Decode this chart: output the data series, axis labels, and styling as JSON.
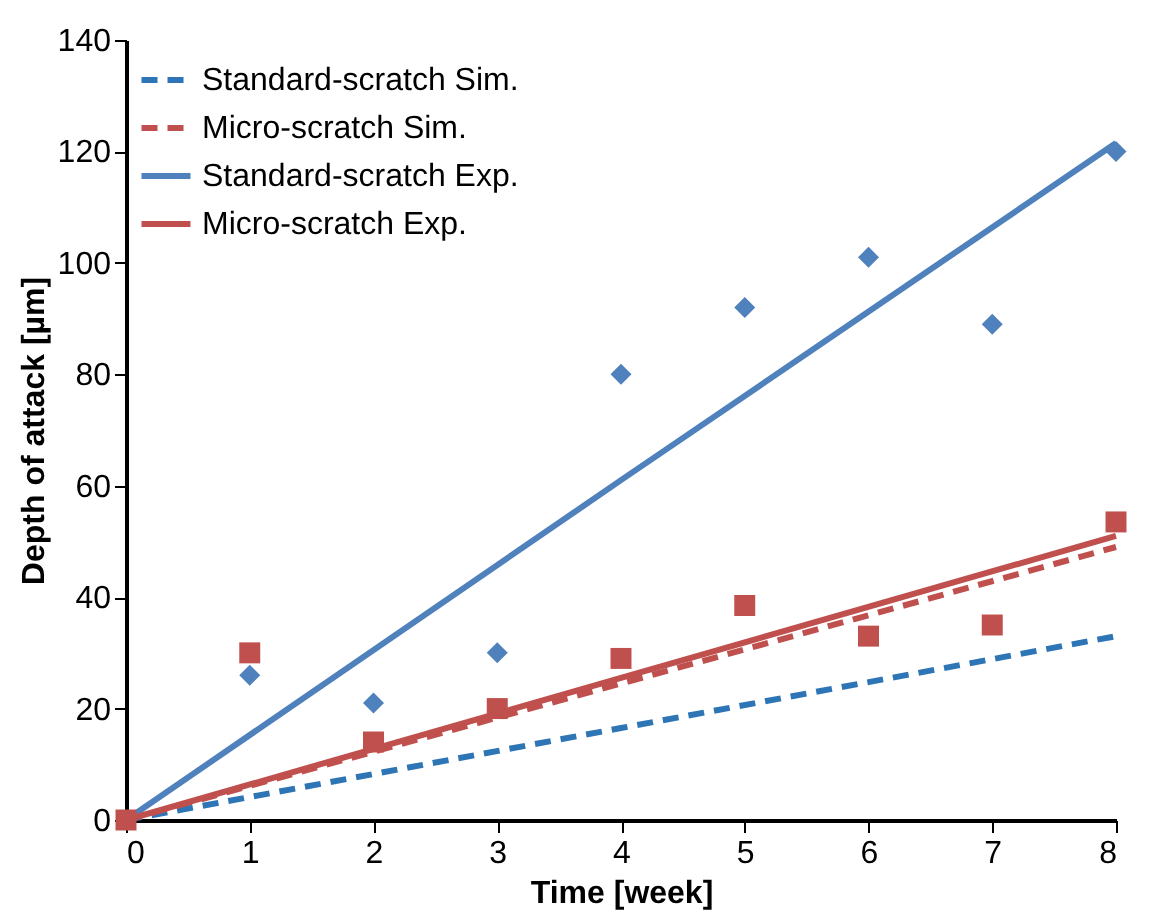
{
  "chart_data": {
    "type": "line",
    "xlabel": "Time [week]",
    "ylabel": "Depth of attack [µm]",
    "x": [
      0,
      1,
      2,
      3,
      4,
      5,
      6,
      7,
      8
    ],
    "xlim": [
      0,
      8
    ],
    "xticks": [
      0,
      1,
      2,
      3,
      4,
      5,
      6,
      7,
      8
    ],
    "ylim": [
      0,
      140
    ],
    "yticks": [
      0,
      20,
      40,
      60,
      80,
      100,
      120,
      140
    ],
    "grid": false,
    "legend": "top left",
    "series": [
      {
        "name": "Standard-scratch Sim.",
        "type": "line",
        "line_style": "dashed",
        "color": "#2e75b6",
        "x": [
          0,
          4,
          8
        ],
        "values": [
          0,
          16.5,
          33
        ]
      },
      {
        "name": "Micro-scratch Sim.",
        "type": "line",
        "line_style": "dashed",
        "color": "#c0504d",
        "x": [
          0,
          4,
          8
        ],
        "values": [
          0,
          24.5,
          49
        ]
      },
      {
        "name": "Standard-scratch Exp.",
        "type": "line",
        "line_style": "solid",
        "color": "#4f81bd",
        "x": [
          0,
          4,
          8
        ],
        "values": [
          0,
          61,
          121.5
        ]
      },
      {
        "name": "Micro-scratch Exp.",
        "type": "line",
        "line_style": "solid",
        "color": "#c0504d",
        "x": [
          0,
          4,
          8
        ],
        "values": [
          0,
          25.5,
          51
        ]
      },
      {
        "type": "scatter",
        "marker": "diamond",
        "color": "#4f81bd",
        "values": [
          null,
          26,
          21,
          30,
          80,
          92,
          101,
          89,
          120
        ]
      },
      {
        "type": "scatter",
        "marker": "square",
        "color": "#c0504d",
        "values": [
          0,
          30,
          14,
          20,
          29,
          38.5,
          33,
          35,
          53.5
        ]
      }
    ]
  }
}
